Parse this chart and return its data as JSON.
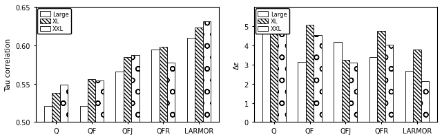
{
  "categories": [
    "Q",
    "QF",
    "QFJ",
    "QFR",
    "LARMOR"
  ],
  "left": {
    "ylabel": "Tau correlation",
    "ylim": [
      0.5,
      0.65
    ],
    "yticks": [
      0.5,
      0.55,
      0.6,
      0.65
    ],
    "Large": [
      0.521,
      0.521,
      0.566,
      0.594,
      0.61
    ],
    "XL": [
      0.538,
      0.556,
      0.585,
      0.598,
      0.623
    ],
    "XXL": [
      0.549,
      0.554,
      0.587,
      0.577,
      0.631
    ]
  },
  "right": {
    "ylabel": "Δε",
    "ylim": [
      0,
      6
    ],
    "yticks": [
      0,
      1,
      2,
      3,
      4,
      5
    ],
    "Large": [
      5.45,
      3.12,
      4.17,
      3.38,
      2.65
    ],
    "XL": [
      5.15,
      5.07,
      3.25,
      4.73,
      3.77
    ],
    "XXL": [
      5.55,
      4.53,
      3.1,
      4.03,
      2.12
    ]
  },
  "bar_width": 0.22,
  "hatches": [
    "",
    "\\\\\\\\\\\\",
    "o"
  ],
  "legend_labels": [
    "Large",
    "XL",
    "XXL"
  ],
  "figsize": [
    6.4,
    2.03
  ],
  "dpi": 100
}
